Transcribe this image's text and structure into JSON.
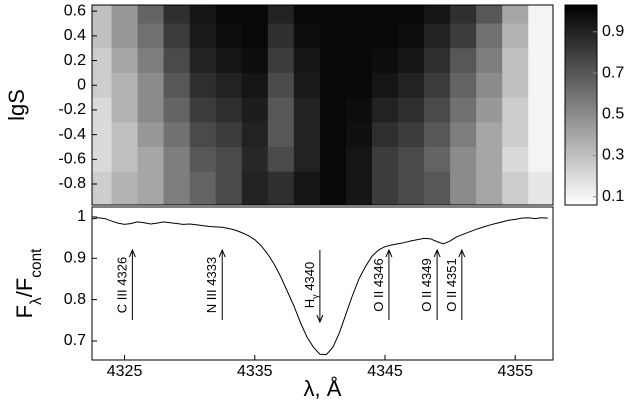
{
  "chart_data": [
    {
      "type": "heatmap",
      "ylabel": "lgS",
      "x": [
        4323,
        4325,
        4327,
        4329,
        4331,
        4333,
        4335,
        4337,
        4339,
        4341,
        4343,
        4345,
        4347,
        4349,
        4351,
        4353,
        4355,
        4357
      ],
      "y": [
        0.6,
        0.4,
        0.2,
        0,
        -0.2,
        -0.4,
        -0.6,
        -0.8
      ],
      "z": [
        [
          0.3,
          0.45,
          0.65,
          0.85,
          0.95,
          1,
          1,
          0.9,
          1,
          1,
          1,
          1,
          1,
          0.95,
          0.85,
          0.7,
          0.4,
          0.1
        ],
        [
          0.3,
          0.45,
          0.6,
          0.8,
          0.93,
          0.98,
          1,
          0.85,
          0.98,
          1,
          1,
          1,
          0.98,
          0.9,
          0.8,
          0.6,
          0.35,
          0.1
        ],
        [
          0.25,
          0.4,
          0.55,
          0.75,
          0.9,
          0.95,
          0.98,
          0.8,
          0.95,
          1,
          1,
          0.98,
          0.95,
          0.85,
          0.7,
          0.55,
          0.3,
          0.1
        ],
        [
          0.25,
          0.35,
          0.5,
          0.7,
          0.85,
          0.9,
          0.95,
          0.75,
          0.93,
          1,
          1,
          0.95,
          0.9,
          0.8,
          0.65,
          0.5,
          0.3,
          0.1
        ],
        [
          0.2,
          0.35,
          0.5,
          0.65,
          0.8,
          0.85,
          0.92,
          0.7,
          0.9,
          1,
          0.98,
          0.9,
          0.85,
          0.75,
          0.6,
          0.45,
          0.25,
          0.1
        ],
        [
          0.2,
          0.3,
          0.45,
          0.6,
          0.75,
          0.8,
          0.9,
          0.7,
          0.9,
          1,
          0.97,
          0.85,
          0.8,
          0.7,
          0.55,
          0.4,
          0.25,
          0.1
        ],
        [
          0.2,
          0.3,
          0.4,
          0.55,
          0.7,
          0.75,
          0.88,
          0.75,
          0.9,
          1,
          0.95,
          0.8,
          0.75,
          0.65,
          0.5,
          0.4,
          0.2,
          0.1
        ],
        [
          0.25,
          0.35,
          0.4,
          0.55,
          0.65,
          0.75,
          0.9,
          0.85,
          0.95,
          1,
          0.95,
          0.8,
          0.75,
          0.7,
          0.5,
          0.4,
          0.25,
          0.15
        ]
      ],
      "xlim": [
        4322.5,
        4357.9
      ],
      "ylim": [
        -0.97,
        0.65
      ],
      "yticks": [
        0.6,
        0.4,
        0.2,
        0,
        -0.2,
        -0.4,
        -0.6,
        -0.8
      ],
      "colorbar": {
        "clim": [
          0.06,
          1.03
        ],
        "ticks": [
          0.1,
          0.3,
          0.5,
          0.7,
          0.9
        ],
        "colors": [
          "#ffffff",
          "#000000"
        ]
      }
    },
    {
      "type": "line",
      "color": "#000000",
      "ylabel": [
        {
          "text": "F"
        },
        {
          "text": "λ",
          "sub": true
        },
        {
          "text": "/F"
        },
        {
          "text": "cont",
          "sub": true
        }
      ],
      "xlabel": "λ, Å",
      "x": [
        4322.5,
        4323,
        4323.5,
        4324,
        4324.5,
        4325,
        4325.5,
        4326,
        4326.5,
        4327,
        4327.5,
        4328,
        4328.5,
        4329,
        4329.5,
        4330,
        4330.5,
        4331,
        4331.5,
        4332,
        4332.5,
        4333,
        4333.5,
        4334,
        4334.5,
        4335,
        4335.5,
        4336,
        4336.5,
        4337,
        4337.5,
        4338,
        4338.5,
        4339,
        4339.5,
        4340,
        4340.5,
        4341,
        4341.5,
        4342,
        4342.5,
        4343,
        4343.5,
        4344,
        4344.5,
        4345,
        4345.5,
        4346,
        4346.5,
        4347,
        4347.5,
        4348,
        4348.5,
        4349,
        4349.5,
        4350,
        4350.5,
        4351,
        4351.5,
        4352,
        4352.5,
        4353,
        4353.5,
        4354,
        4354.5,
        4355,
        4355.5,
        4356,
        4356.5,
        4357,
        4357.5
      ],
      "values": [
        0.995,
        0.998,
        0.996,
        0.99,
        0.985,
        0.982,
        0.984,
        0.988,
        0.986,
        0.983,
        0.985,
        0.988,
        0.986,
        0.984,
        0.982,
        0.983,
        0.981,
        0.979,
        0.977,
        0.976,
        0.975,
        0.972,
        0.968,
        0.962,
        0.955,
        0.945,
        0.93,
        0.91,
        0.885,
        0.855,
        0.82,
        0.785,
        0.745,
        0.71,
        0.685,
        0.668,
        0.667,
        0.685,
        0.72,
        0.765,
        0.81,
        0.85,
        0.88,
        0.905,
        0.92,
        0.928,
        0.932,
        0.935,
        0.938,
        0.942,
        0.945,
        0.948,
        0.947,
        0.94,
        0.935,
        0.942,
        0.952,
        0.958,
        0.964,
        0.97,
        0.975,
        0.98,
        0.984,
        0.988,
        0.992,
        0.994,
        0.997,
        0.998,
        0.996,
        0.998,
        0.997
      ],
      "xlim": [
        4322.5,
        4357.9
      ],
      "ylim": [
        0.654,
        1.024
      ],
      "xticks": [
        4325,
        4335,
        4345,
        4355
      ],
      "yticks": [
        1,
        0.9,
        0.8,
        0.7
      ],
      "annotations": [
        {
          "text": [
            {
              "text": "C III 4326"
            }
          ],
          "x": 4325.6,
          "arrow": "up"
        },
        {
          "text": [
            {
              "text": "N III 4333"
            }
          ],
          "x": 4332.5,
          "arrow": "up"
        },
        {
          "text": [
            {
              "text": "H"
            },
            {
              "text": "γ",
              "sub": true
            },
            {
              "text": " 4340"
            }
          ],
          "x": 4340.0,
          "arrow": "down"
        },
        {
          "text": [
            {
              "text": "O II 4346"
            }
          ],
          "x": 4345.3,
          "arrow": "up"
        },
        {
          "text": [
            {
              "text": "O II 4349"
            }
          ],
          "x": 4349.0,
          "arrow": "up"
        },
        {
          "text": [
            {
              "text": "O II 4351"
            }
          ],
          "x": 4350.9,
          "arrow": "up"
        }
      ]
    }
  ]
}
